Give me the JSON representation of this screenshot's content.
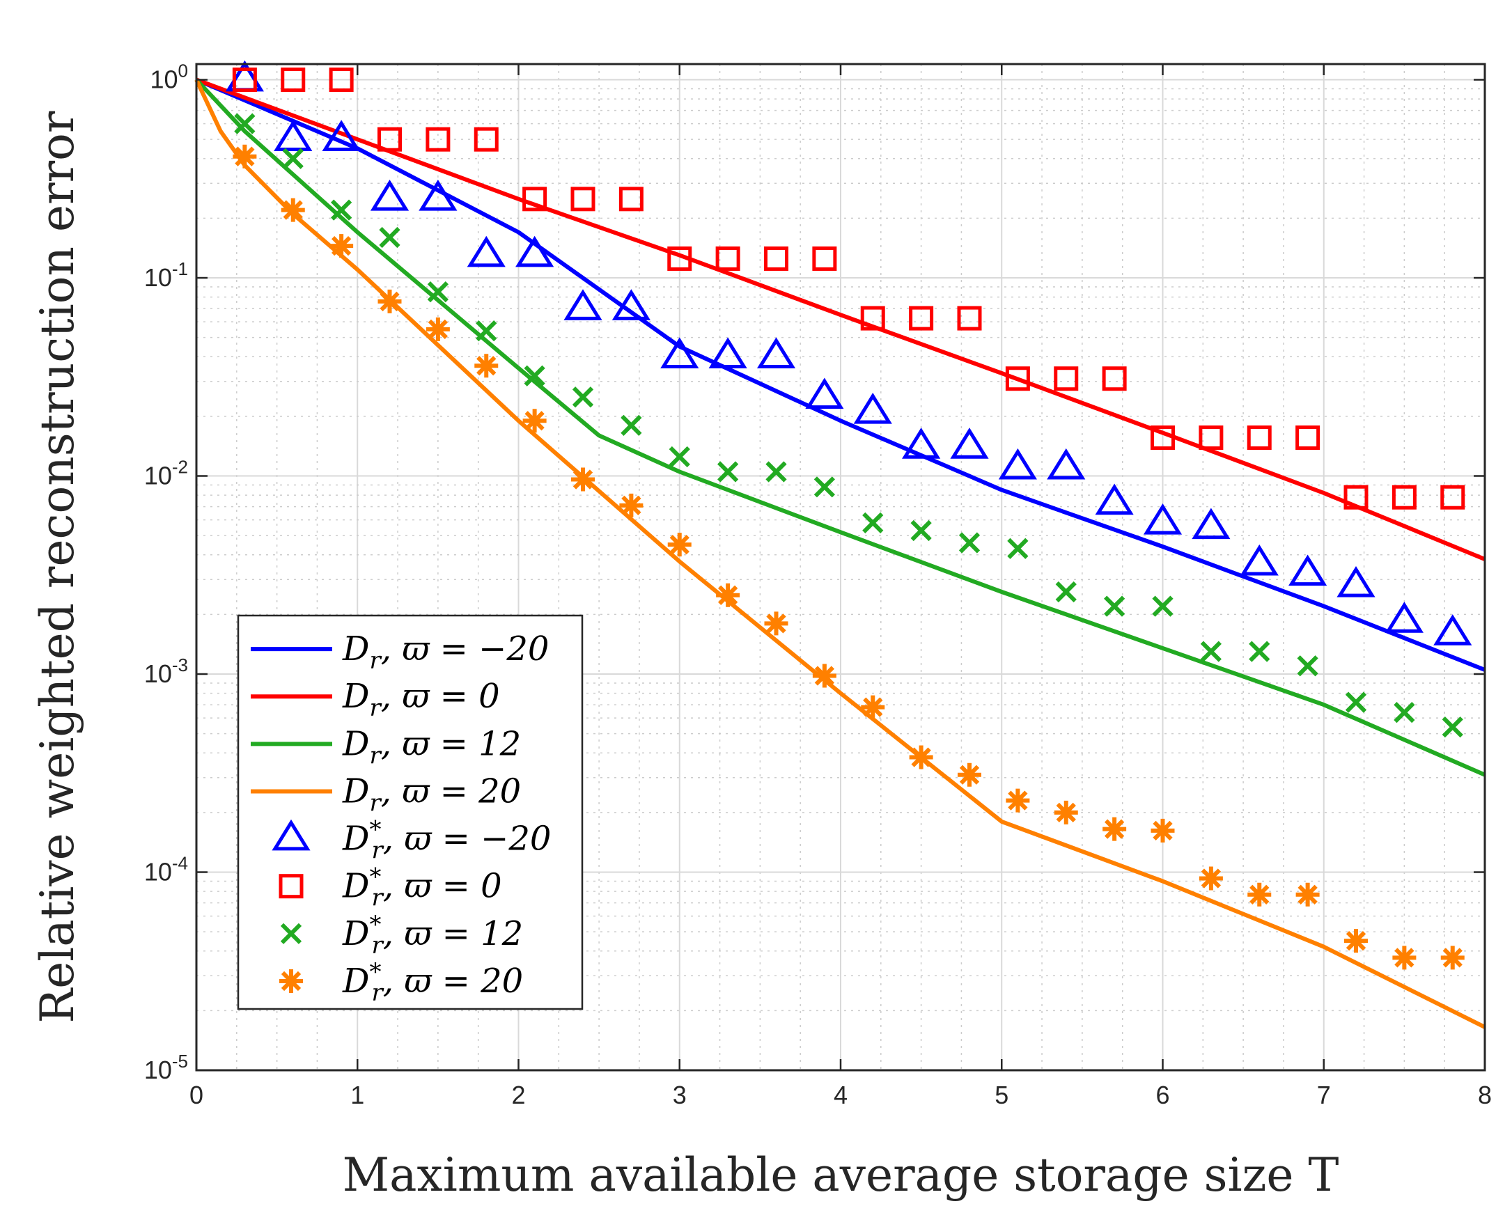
{
  "chart_data": {
    "type": "line",
    "title": "",
    "xlabel": "Maximum available average storage size T",
    "ylabel": "Relative weighted reconstruction error",
    "xlim": [
      0,
      8
    ],
    "ylim": [
      1e-05,
      1.2
    ],
    "yscale": "log",
    "grid": true,
    "legend_position": "bottom-left",
    "x_ticks": [
      0,
      1,
      2,
      3,
      4,
      5,
      6,
      7,
      8
    ],
    "x_tick_labels": [
      "0",
      "1",
      "2",
      "3",
      "4",
      "5",
      "6",
      "7",
      "8"
    ],
    "y_ticks": [
      1,
      0.1,
      0.01,
      0.001,
      0.0001,
      1e-05
    ],
    "y_tick_labels": [
      {
        "base": "10",
        "exp": "0"
      },
      {
        "base": "10",
        "exp": "-1"
      },
      {
        "base": "10",
        "exp": "-2"
      },
      {
        "base": "10",
        "exp": "-3"
      },
      {
        "base": "10",
        "exp": "-4"
      },
      {
        "base": "10",
        "exp": "-5"
      }
    ],
    "series": [
      {
        "name": "D_r, ϖ = −20",
        "legend_label": "D",
        "legend_sub": "r",
        "legend_tail": ", ϖ = −20",
        "kind": "line",
        "color": "#0000ff",
        "x": [
          0,
          1,
          2,
          3,
          4,
          5,
          6,
          7,
          8
        ],
        "y": [
          1.0,
          0.45,
          0.17,
          0.045,
          0.019,
          0.0085,
          0.0044,
          0.0022,
          0.00105
        ]
      },
      {
        "name": "D_r, ϖ = 0",
        "legend_label": "D",
        "legend_sub": "r",
        "legend_tail": ", ϖ = 0",
        "kind": "line",
        "color": "#ff0000",
        "x": [
          0,
          1,
          2,
          3,
          4,
          5,
          6,
          7,
          8
        ],
        "y": [
          1.0,
          0.5,
          0.25,
          0.13,
          0.065,
          0.033,
          0.0165,
          0.0082,
          0.0038
        ]
      },
      {
        "name": "D_r, ϖ = 12",
        "legend_label": "D",
        "legend_sub": "r",
        "legend_tail": ", ϖ = 12",
        "kind": "line",
        "color": "#22aa22",
        "x": [
          0,
          0.3,
          1,
          2,
          2.5,
          3,
          4,
          5,
          6,
          7,
          8
        ],
        "y": [
          1.0,
          0.55,
          0.17,
          0.035,
          0.016,
          0.0105,
          0.0052,
          0.0026,
          0.00135,
          0.0007,
          0.00031
        ]
      },
      {
        "name": "D_r, ϖ = 20",
        "legend_label": "D",
        "legend_sub": "r",
        "legend_tail": ", ϖ = 20",
        "kind": "line",
        "color": "#ff8000",
        "x": [
          0,
          0.15,
          0.3,
          0.6,
          1,
          2,
          3,
          4,
          5,
          6,
          7,
          8
        ],
        "y": [
          1.0,
          0.55,
          0.37,
          0.21,
          0.11,
          0.019,
          0.0037,
          0.0008,
          0.00018,
          9e-05,
          4.2e-05,
          1.65e-05
        ]
      },
      {
        "name": "D_r*, ϖ = −20",
        "legend_label": "D",
        "legend_sub": "r",
        "legend_sup": "*",
        "legend_tail": ", ϖ = −20",
        "kind": "triangle",
        "color": "#0000ff",
        "x": [
          0.3,
          0.6,
          0.9,
          1.2,
          1.5,
          1.8,
          2.1,
          2.4,
          2.7,
          3.0,
          3.3,
          3.6,
          3.9,
          4.2,
          4.5,
          4.8,
          5.1,
          5.4,
          5.7,
          6.0,
          6.3,
          6.6,
          6.9,
          7.2,
          7.5,
          7.8
        ],
        "y": [
          1.0,
          0.5,
          0.5,
          0.25,
          0.25,
          0.13,
          0.13,
          0.07,
          0.07,
          0.04,
          0.04,
          0.04,
          0.025,
          0.021,
          0.014,
          0.014,
          0.011,
          0.011,
          0.0073,
          0.0058,
          0.0055,
          0.0036,
          0.0032,
          0.0028,
          0.00185,
          0.0016
        ]
      },
      {
        "name": "D_r*, ϖ = 0",
        "legend_label": "D",
        "legend_sub": "r",
        "legend_sup": "*",
        "legend_tail": ", ϖ = 0",
        "kind": "square",
        "color": "#ff0000",
        "x": [
          0.3,
          0.6,
          0.9,
          1.2,
          1.5,
          1.8,
          2.1,
          2.4,
          2.7,
          3.0,
          3.3,
          3.6,
          3.9,
          4.2,
          4.5,
          4.8,
          5.1,
          5.4,
          5.7,
          6.0,
          6.3,
          6.6,
          6.9,
          7.2,
          7.5,
          7.8
        ],
        "y": [
          1.0,
          1.0,
          1.0,
          0.5,
          0.5,
          0.5,
          0.25,
          0.25,
          0.25,
          0.125,
          0.125,
          0.125,
          0.125,
          0.0625,
          0.0625,
          0.0625,
          0.031,
          0.031,
          0.031,
          0.0156,
          0.0156,
          0.0156,
          0.0156,
          0.0078,
          0.0078,
          0.0078
        ]
      },
      {
        "name": "D_r*, ϖ = 12",
        "legend_label": "D",
        "legend_sub": "r",
        "legend_sup": "*",
        "legend_tail": ", ϖ = 12",
        "kind": "cross",
        "color": "#22aa22",
        "x": [
          0.3,
          0.6,
          0.9,
          1.2,
          1.5,
          1.8,
          2.1,
          2.4,
          2.7,
          3.0,
          3.3,
          3.6,
          3.9,
          4.2,
          4.5,
          4.8,
          5.1,
          5.4,
          5.7,
          6.0,
          6.3,
          6.6,
          6.9,
          7.2,
          7.5,
          7.8
        ],
        "y": [
          0.6,
          0.4,
          0.22,
          0.16,
          0.085,
          0.054,
          0.032,
          0.025,
          0.018,
          0.0125,
          0.0105,
          0.0105,
          0.0088,
          0.0058,
          0.0053,
          0.0046,
          0.0043,
          0.0026,
          0.0022,
          0.0022,
          0.0013,
          0.0013,
          0.0011,
          0.00072,
          0.00064,
          0.00054
        ]
      },
      {
        "name": "D_r*, ϖ = 20",
        "legend_label": "D",
        "legend_sub": "r",
        "legend_sup": "*",
        "legend_tail": ", ϖ = 20",
        "kind": "asterisk",
        "color": "#ff8000",
        "x": [
          0.3,
          0.6,
          0.9,
          1.2,
          1.5,
          1.8,
          2.1,
          2.4,
          2.7,
          3.0,
          3.3,
          3.6,
          3.9,
          4.2,
          4.5,
          4.8,
          5.1,
          5.4,
          5.7,
          6.0,
          6.3,
          6.6,
          6.9,
          7.2,
          7.5,
          7.8
        ],
        "y": [
          0.41,
          0.22,
          0.145,
          0.076,
          0.055,
          0.036,
          0.019,
          0.0096,
          0.0071,
          0.0045,
          0.0025,
          0.0018,
          0.00098,
          0.00068,
          0.00038,
          0.00031,
          0.00023,
          0.0002,
          0.000165,
          0.000162,
          9.3e-05,
          7.7e-05,
          7.7e-05,
          4.5e-05,
          3.7e-05,
          3.7e-05
        ]
      }
    ]
  }
}
